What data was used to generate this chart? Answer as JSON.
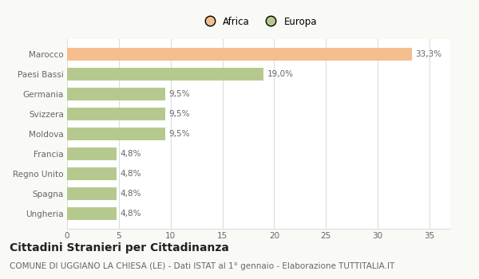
{
  "categories": [
    "Ungheria",
    "Spagna",
    "Regno Unito",
    "Francia",
    "Moldova",
    "Svizzera",
    "Germania",
    "Paesi Bassi",
    "Marocco"
  ],
  "values": [
    4.8,
    4.8,
    4.8,
    4.8,
    9.5,
    9.5,
    9.5,
    19.0,
    33.3
  ],
  "labels": [
    "4,8%",
    "4,8%",
    "4,8%",
    "4,8%",
    "9,5%",
    "9,5%",
    "9,5%",
    "19,0%",
    "33,3%"
  ],
  "colors": [
    "#b5c98e",
    "#b5c98e",
    "#b5c98e",
    "#b5c98e",
    "#b5c98e",
    "#b5c98e",
    "#b5c98e",
    "#b5c98e",
    "#f5be8e"
  ],
  "legend_labels": [
    "Africa",
    "Europa"
  ],
  "legend_colors": [
    "#f5be8e",
    "#b5c98e"
  ],
  "xlim": [
    0,
    37
  ],
  "xticks": [
    0,
    5,
    10,
    15,
    20,
    25,
    30,
    35
  ],
  "title": "Cittadini Stranieri per Cittadinanza",
  "subtitle": "COMUNE DI UGGIANO LA CHIESA (LE) - Dati ISTAT al 1° gennaio - Elaborazione TUTTITALIA.IT",
  "bg_color": "#f9f9f6",
  "bar_bg_color": "#ffffff",
  "grid_color": "#dddddd",
  "title_fontsize": 10,
  "subtitle_fontsize": 7.5,
  "label_fontsize": 7.5,
  "tick_fontsize": 7.5,
  "legend_fontsize": 8.5
}
